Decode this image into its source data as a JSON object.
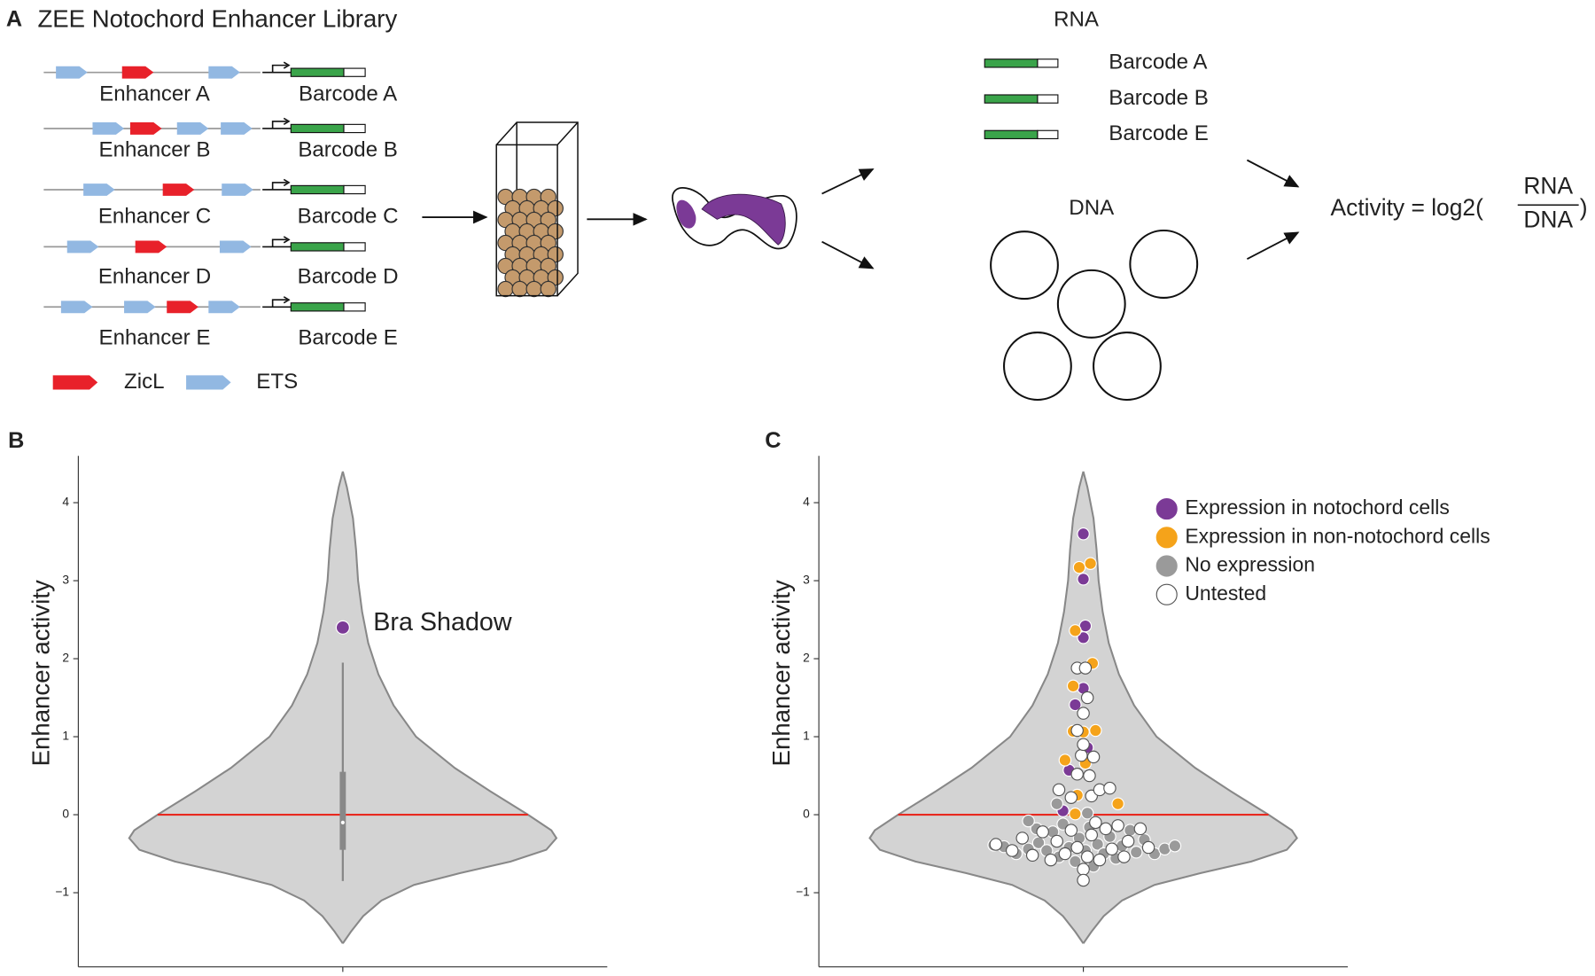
{
  "panel_a": {
    "label": "A",
    "title": "ZEE Notochord Enhancer Library",
    "enhancers": [
      "Enhancer A",
      "Enhancer B",
      "Enhancer C",
      "Enhancer D",
      "Enhancer E"
    ],
    "barcodes": [
      "Barcode A",
      "Barcode B",
      "Barcode C",
      "Barcode D",
      "Barcode E"
    ],
    "legend": [
      "ZicL",
      "ETS"
    ],
    "rna": {
      "title": "RNA",
      "barcodes": [
        "Barcode A",
        "Barcode B",
        "Barcode E"
      ]
    },
    "dna_title": "DNA",
    "formula": {
      "prefix": "Activity = log2(",
      "numerator": "RNA",
      "denominator": "DNA",
      "suffix": ")"
    }
  },
  "chart_data": [
    {
      "type": "violin",
      "panel_label": "B",
      "ylabel": "Enhancer activity",
      "ylim": [
        -1.95,
        4.6
      ],
      "yticks": [
        {
          "value": -1,
          "label": "−1"
        },
        0,
        1,
        2,
        3,
        4
      ],
      "xlim": [
        -2.6,
        2.6
      ],
      "outline": {
        "y": [
          4.4,
          4.2,
          3.8,
          3.4,
          3.0,
          2.6,
          2.2,
          1.8,
          1.4,
          1.0,
          0.6,
          0.3,
          0,
          -0.2,
          -0.3,
          -0.45,
          -0.6,
          -0.75,
          -0.9,
          -1.1,
          -1.3,
          -1.5,
          -1.65
        ],
        "half_width": [
          0,
          0.04,
          0.1,
          0.13,
          0.15,
          0.19,
          0.25,
          0.35,
          0.5,
          0.72,
          1.1,
          1.45,
          1.82,
          2.05,
          2.1,
          2.0,
          1.65,
          1.15,
          0.7,
          0.38,
          0.2,
          0.08,
          0
        ]
      },
      "reference_line": 0,
      "reference_color": "#e8291f",
      "violin_color": "#d3d3d3",
      "box": {
        "whisker_low": -0.85,
        "q1": -0.45,
        "median": -0.1,
        "q3": 0.55,
        "whisker_high": 1.95
      },
      "series": [
        {
          "name": "Bra Shadow",
          "color": "#7b3a96",
          "x": [
            0
          ],
          "values": [
            2.4
          ]
        }
      ]
    },
    {
      "type": "violin",
      "panel_label": "C",
      "ylabel": "Enhancer activity",
      "ylim": [
        -1.95,
        4.6
      ],
      "yticks": [
        {
          "value": -1,
          "label": "−1"
        },
        0,
        1,
        2,
        3,
        4
      ],
      "xlim": [
        -2.6,
        2.6
      ],
      "outline": {
        "y": [
          4.4,
          4.2,
          3.8,
          3.4,
          3.0,
          2.6,
          2.2,
          1.8,
          1.4,
          1.0,
          0.6,
          0.3,
          0,
          -0.2,
          -0.3,
          -0.45,
          -0.6,
          -0.75,
          -0.9,
          -1.1,
          -1.3,
          -1.5,
          -1.65
        ],
        "half_width": [
          0,
          0.04,
          0.1,
          0.13,
          0.15,
          0.19,
          0.25,
          0.35,
          0.5,
          0.72,
          1.1,
          1.45,
          1.82,
          2.05,
          2.1,
          2.0,
          1.65,
          1.15,
          0.7,
          0.38,
          0.2,
          0.08,
          0
        ]
      },
      "reference_line": 0,
      "reference_color": "#e8291f",
      "violin_color": "#d3d3d3",
      "legend": "upper right",
      "series": [
        {
          "name": "Expression in notochord cells",
          "color": "#7b3a96",
          "x": [
            0,
            0,
            0.02,
            0,
            0,
            -0.08,
            0.04,
            -0.14,
            -0.2
          ],
          "values": [
            3.6,
            3.02,
            2.42,
            2.27,
            1.62,
            1.41,
            0.86,
            0.57,
            0.05
          ]
        },
        {
          "name": "Expression in non-notochord cells",
          "color": "#f5a31a",
          "x": [
            -0.04,
            0.07,
            -0.08,
            0.09,
            -0.1,
            -0.1,
            0,
            0.12,
            -0.18,
            0.02,
            -0.06,
            -0.08,
            0.34
          ],
          "values": [
            3.17,
            3.22,
            2.36,
            1.94,
            1.65,
            1.07,
            1.06,
            1.08,
            0.7,
            0.66,
            0.25,
            0.01,
            0.14
          ]
        },
        {
          "name": "No expression",
          "color": "#9a9a9a",
          "x": [
            -0.88,
            -0.78,
            -0.66,
            -0.54,
            -0.46,
            -0.44,
            -0.36,
            -0.3,
            -0.24,
            -0.2,
            -0.14,
            -0.08,
            -0.04,
            0.02,
            0.06,
            0.1,
            0.14,
            0.2,
            0.26,
            0.32,
            0.38,
            0.46,
            0.52,
            0.6,
            0.7,
            0.8,
            0.9,
            -0.26,
            0.04,
            -0.54
          ],
          "values": [
            -0.39,
            -0.41,
            -0.5,
            -0.44,
            -0.18,
            -0.36,
            -0.46,
            -0.22,
            -0.54,
            -0.12,
            -0.42,
            -0.6,
            -0.3,
            -0.46,
            -0.16,
            -0.66,
            -0.38,
            -0.5,
            -0.28,
            -0.56,
            -0.4,
            -0.2,
            -0.48,
            -0.32,
            -0.5,
            -0.44,
            -0.4,
            0.14,
            0.02,
            -0.08
          ]
        },
        {
          "name": "Untested",
          "color": "#ffffff",
          "x": [
            -0.86,
            -0.7,
            -0.6,
            -0.5,
            -0.4,
            -0.32,
            -0.26,
            -0.18,
            -0.12,
            -0.06,
            0,
            0.04,
            0.08,
            0.12,
            0.16,
            0.22,
            0.28,
            0.34,
            0.4,
            0.44,
            0.56,
            0.64,
            0,
            -0.24,
            -0.12,
            0.08,
            0.16,
            0.26,
            -0.06,
            0.06,
            -0.02,
            0.1,
            0,
            -0.06,
            0.02,
            0.04,
            -0.06,
            0
          ],
          "values": [
            -0.38,
            -0.46,
            -0.3,
            -0.52,
            -0.22,
            -0.58,
            -0.34,
            -0.5,
            -0.2,
            -0.42,
            -0.7,
            -0.54,
            -0.26,
            -0.1,
            -0.58,
            -0.18,
            -0.44,
            -0.14,
            -0.54,
            -0.34,
            -0.18,
            -0.42,
            -0.84,
            0.32,
            0.22,
            0.24,
            0.32,
            0.34,
            0.52,
            0.5,
            0.76,
            0.74,
            1.3,
            1.88,
            1.88,
            1.5,
            1.08,
            0.9
          ]
        }
      ]
    }
  ]
}
